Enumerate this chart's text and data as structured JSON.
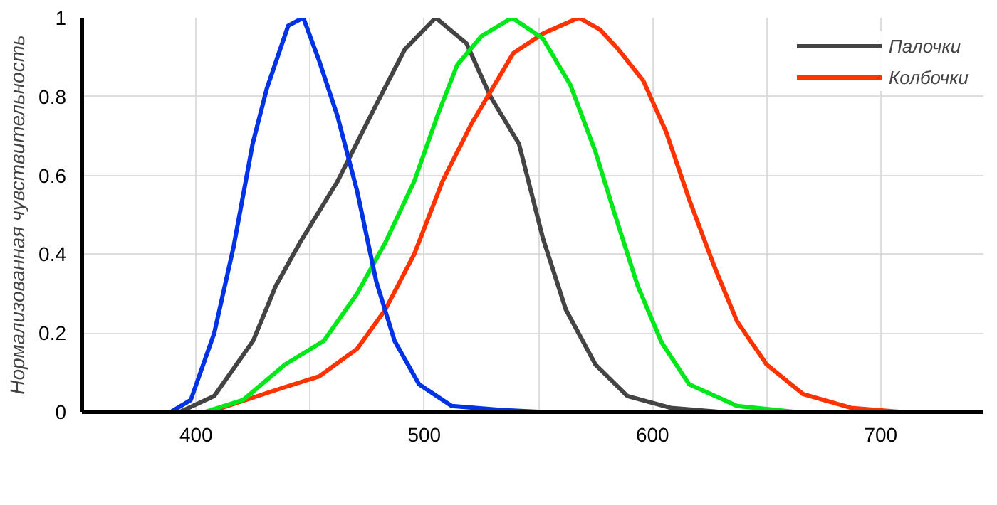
{
  "chart_data": {
    "type": "line",
    "ylabel": "Нормализованная чувствительность",
    "xlim": [
      350,
      745
    ],
    "ylim": [
      0,
      1
    ],
    "xticks": [
      {
        "value": 350,
        "label": null
      },
      400,
      {
        "value": 450,
        "label": null
      },
      500,
      {
        "value": 550,
        "label": null
      },
      600,
      {
        "value": 650,
        "label": null
      },
      700
    ],
    "yticks": [
      0,
      0.2,
      0.4,
      0.6,
      0.8,
      1
    ],
    "grid": true,
    "legend": "top right",
    "marker": "none",
    "line_style": "solid",
    "series": [
      {
        "name": "Палочки",
        "color": "#444444",
        "x": [
          393,
          408,
          425,
          435,
          445.6,
          462,
          479,
          491.5,
          505,
          518.5,
          529,
          541.5,
          552,
          562,
          575,
          589,
          608,
          629
        ],
        "values": [
          0,
          0.04,
          0.18,
          0.32,
          0.43,
          0.585,
          0.78,
          0.92,
          1.0,
          0.935,
          0.8,
          0.68,
          0.44,
          0.26,
          0.12,
          0.04,
          0.01,
          0
        ]
      },
      {
        "name": "Колбочки",
        "color": "#ff3300",
        "x": [
          406,
          437.5,
          454,
          470.6,
          483,
          495.6,
          508,
          520.6,
          539,
          552,
          567.7,
          577,
          585,
          596,
          606,
          616,
          627,
          637,
          650,
          666,
          687,
          708
        ],
        "values": [
          0,
          0.06,
          0.09,
          0.16,
          0.26,
          0.4,
          0.585,
          0.73,
          0.91,
          0.96,
          1.0,
          0.97,
          0.92,
          0.84,
          0.71,
          0.54,
          0.37,
          0.23,
          0.12,
          0.045,
          0.01,
          0
        ]
      },
      {
        "color": "#00e81a",
        "x": [
          404,
          420.6,
          439,
          456,
          470.6,
          483,
          495.6,
          506,
          514.4,
          525,
          538.5,
          552,
          564,
          575,
          583,
          593.5,
          604,
          616,
          637,
          662
        ],
        "values": [
          0,
          0.03,
          0.12,
          0.18,
          0.3,
          0.43,
          0.585,
          0.755,
          0.88,
          0.953,
          1.0,
          0.947,
          0.83,
          0.66,
          0.51,
          0.32,
          0.176,
          0.07,
          0.015,
          0
        ]
      },
      {
        "color": "#0033e6",
        "x": [
          389,
          397.7,
          408,
          416.5,
          424.8,
          431,
          440.4,
          447,
          454,
          462,
          470.6,
          479,
          487,
          497.7,
          512,
          533,
          550
        ],
        "values": [
          0,
          0.03,
          0.2,
          0.42,
          0.68,
          0.82,
          0.98,
          1.0,
          0.89,
          0.75,
          0.56,
          0.33,
          0.18,
          0.07,
          0.015,
          0.005,
          0
        ]
      }
    ]
  }
}
